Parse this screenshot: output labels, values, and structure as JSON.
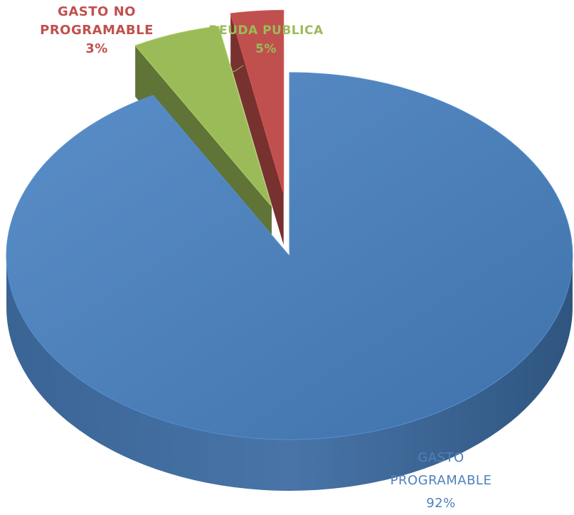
{
  "chart_data": {
    "type": "pie",
    "style": "3d-exploded",
    "slices": [
      {
        "name_lines": [
          "GASTO",
          "PROGRAMABLE"
        ],
        "label": "92%",
        "value": 92,
        "color": "#4f81bd"
      },
      {
        "name_lines": [
          "DEUDA PUBLICA"
        ],
        "label": "5%",
        "value": 5,
        "color": "#9bbb59"
      },
      {
        "name_lines": [
          "GASTO NO",
          "PROGRAMABLE"
        ],
        "label": "3%",
        "value": 3,
        "color": "#c0504d"
      }
    ],
    "legend": "none"
  }
}
